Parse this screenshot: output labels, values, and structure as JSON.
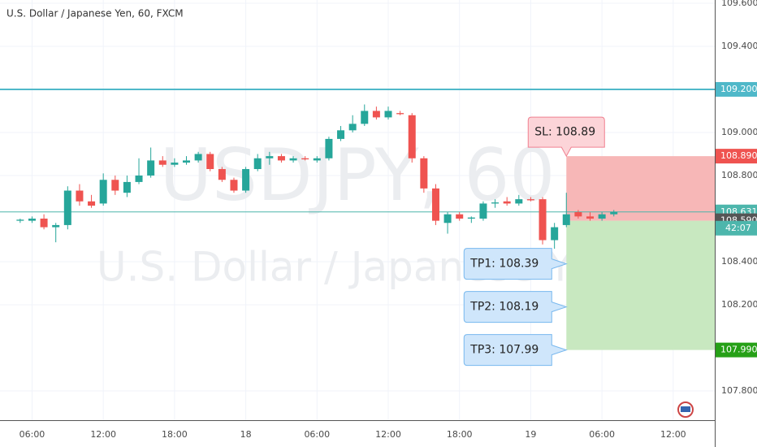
{
  "chart_data": {
    "type": "candlestick",
    "title": "U.S. Dollar / Japanese Yen, 60, FXCM",
    "watermark_symbol": "USDJPY, 60",
    "watermark_name": "U.S. Dollar / Japanese Yen",
    "x": [
      5,
      6,
      7,
      8,
      9,
      10,
      11,
      12,
      13,
      14,
      15,
      16,
      17,
      18,
      19,
      20,
      21,
      22,
      23,
      24,
      25,
      26,
      27,
      28,
      29,
      30,
      31,
      32,
      33,
      34,
      35,
      36,
      37,
      38,
      39,
      40,
      41,
      42,
      43,
      44,
      45,
      46,
      47,
      48,
      49,
      50,
      51,
      52,
      53,
      54,
      55
    ],
    "open": [
      108.59,
      108.59,
      108.6,
      108.56,
      108.57,
      108.73,
      108.68,
      108.67,
      108.78,
      108.72,
      108.77,
      108.8,
      108.87,
      108.85,
      108.86,
      108.87,
      108.9,
      108.83,
      108.78,
      108.73,
      108.83,
      108.88,
      108.89,
      108.87,
      108.88,
      108.87,
      108.88,
      108.97,
      109.01,
      109.04,
      109.1,
      109.07,
      109.09,
      109.08,
      108.88,
      108.74,
      108.58,
      108.62,
      108.6,
      108.6,
      108.67,
      108.68,
      108.67,
      108.69,
      108.69,
      108.5,
      108.57,
      108.63,
      108.61,
      108.6,
      108.62
    ],
    "high": [
      108.6,
      108.61,
      108.62,
      108.58,
      108.75,
      108.76,
      108.71,
      108.81,
      108.8,
      108.8,
      108.88,
      108.93,
      108.89,
      108.88,
      108.89,
      108.91,
      108.91,
      108.84,
      108.79,
      108.84,
      108.9,
      108.91,
      108.9,
      108.89,
      108.89,
      108.89,
      108.98,
      109.03,
      109.08,
      109.13,
      109.12,
      109.12,
      109.1,
      109.09,
      108.89,
      108.76,
      108.63,
      108.63,
      108.61,
      108.68,
      108.69,
      108.7,
      108.71,
      108.7,
      108.7,
      108.58,
      108.72,
      108.64,
      108.63,
      108.63,
      108.64
    ],
    "low": [
      108.58,
      108.58,
      108.55,
      108.49,
      108.55,
      108.66,
      108.65,
      108.66,
      108.71,
      108.7,
      108.76,
      108.79,
      108.84,
      108.84,
      108.85,
      108.86,
      108.82,
      108.77,
      108.72,
      108.72,
      108.82,
      108.85,
      108.86,
      108.86,
      108.87,
      108.86,
      108.87,
      108.96,
      109.0,
      109.03,
      109.06,
      109.06,
      109.08,
      108.86,
      108.72,
      108.57,
      108.53,
      108.59,
      108.58,
      108.59,
      108.65,
      108.66,
      108.66,
      108.68,
      108.48,
      108.46,
      108.56,
      108.6,
      108.59,
      108.59,
      108.61
    ],
    "close": [
      108.595,
      108.6,
      108.56,
      108.57,
      108.73,
      108.68,
      108.66,
      108.78,
      108.73,
      108.77,
      108.8,
      108.87,
      108.85,
      108.86,
      108.87,
      108.9,
      108.83,
      108.78,
      108.73,
      108.83,
      108.88,
      108.89,
      108.87,
      108.88,
      108.875,
      108.88,
      108.97,
      109.01,
      109.04,
      109.1,
      109.07,
      109.1,
      109.085,
      108.88,
      108.74,
      108.59,
      108.62,
      108.6,
      108.605,
      108.67,
      108.675,
      108.67,
      108.69,
      108.685,
      108.5,
      108.56,
      108.62,
      108.61,
      108.6,
      108.62,
      108.631
    ],
    "up_color": "#26a69a",
    "down_color": "#ef5350",
    "xlim": [
      3.3,
      63.5
    ],
    "ylim": [
      107.664,
      109.615
    ],
    "xticks": [
      {
        "value": 6,
        "label": "06:00"
      },
      {
        "value": 12,
        "label": "12:00"
      },
      {
        "value": 18,
        "label": "18:00"
      },
      {
        "value": 24,
        "label": "18"
      },
      {
        "value": 30,
        "label": "06:00"
      },
      {
        "value": 36,
        "label": "12:00"
      },
      {
        "value": 42,
        "label": "18:00"
      },
      {
        "value": 48,
        "label": "19"
      },
      {
        "value": 54,
        "label": "06:00"
      },
      {
        "value": 60,
        "label": "12:00"
      }
    ],
    "yticks": [
      {
        "value": 109.6,
        "label": "109.600"
      },
      {
        "value": 109.4,
        "label": "109.400"
      },
      {
        "value": 109.0,
        "label": "109.000"
      },
      {
        "value": 108.8,
        "label": "108.800"
      },
      {
        "value": 108.4,
        "label": "108.400"
      },
      {
        "value": 108.2,
        "label": "108.200"
      },
      {
        "value": 107.8,
        "label": "107.800"
      }
    ],
    "grid": true,
    "price_labels": [
      {
        "value": 109.2,
        "label": "109.200",
        "color": "#4fb8c9",
        "line": true
      },
      {
        "value": 108.89,
        "label": "108.890",
        "color": "#ef5350",
        "line": false
      },
      {
        "value": 108.631,
        "label": "108.631",
        "color": "#4db6ac",
        "line": true
      },
      {
        "value": 108.59,
        "label": "108.590",
        "color": "#555555",
        "line": false
      },
      {
        "value": 107.99,
        "label": "107.990",
        "color": "#26a017",
        "line": false
      }
    ],
    "countdown": "42:07",
    "position": {
      "start": 51,
      "entry": 108.59,
      "stop": 108.89,
      "target": 107.99,
      "stop_color": "#f7b7b7",
      "target_color": "#c8e8c0"
    },
    "callouts": [
      {
        "value": 108.89,
        "label": "SL: 108.89",
        "placement": "above",
        "color": "#fcd4d8",
        "border": "#f08090"
      },
      {
        "value": 108.39,
        "label": "TP1: 108.39",
        "placement": "left",
        "color": "#cfe6fb",
        "border": "#78b8ee"
      },
      {
        "value": 108.19,
        "label": "TP2: 108.19",
        "placement": "left",
        "color": "#cfe6fb",
        "border": "#78b8ee"
      },
      {
        "value": 107.99,
        "label": "TP3: 107.99",
        "placement": "left",
        "color": "#cfe6fb",
        "border": "#78b8ee"
      }
    ]
  }
}
